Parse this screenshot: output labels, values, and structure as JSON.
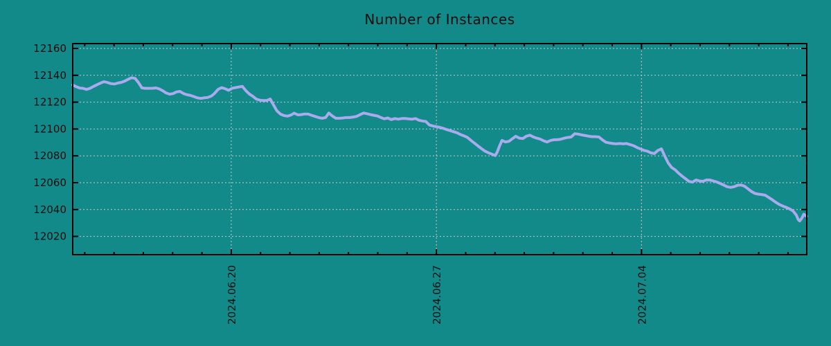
{
  "title": "Number of Instances",
  "colors": {
    "background": "#128A8A",
    "line": "#AAAAEE",
    "grid": "#C9C9C9",
    "axis": "#000000",
    "text": "#0e0e0e"
  },
  "chart_data": {
    "type": "line",
    "title": "Number of Instances",
    "series_name": "instances",
    "xlabel": "",
    "ylabel": "",
    "grid": true,
    "legend": "none",
    "x_unit": "days relative to 2024.06.20",
    "x_range": [
      -5.41,
      19.64
    ],
    "y_range": [
      12006.4,
      12163.6
    ],
    "y_ticks": [
      12020,
      12040,
      12060,
      12080,
      12100,
      12120,
      12140,
      12160
    ],
    "x_major_ticks": [
      {
        "day": 0,
        "label": "2024.06.20"
      },
      {
        "day": 7,
        "label": "2024.06.27"
      },
      {
        "day": 14,
        "label": "2024.07.04"
      }
    ],
    "x_minor_tick_interval_days": 1,
    "points": [
      [
        -5.41,
        12132.8
      ],
      [
        -5.29,
        12131.5
      ],
      [
        -5.17,
        12130.5
      ],
      [
        -5.06,
        12130.3
      ],
      [
        -4.94,
        12129.5
      ],
      [
        -4.82,
        12130.3
      ],
      [
        -4.7,
        12131.7
      ],
      [
        -4.58,
        12133.0
      ],
      [
        -4.46,
        12134.2
      ],
      [
        -4.35,
        12135.2
      ],
      [
        -4.23,
        12134.7
      ],
      [
        -4.11,
        12133.8
      ],
      [
        -3.99,
        12133.5
      ],
      [
        -3.87,
        12134.2
      ],
      [
        -3.76,
        12134.7
      ],
      [
        -3.64,
        12135.6
      ],
      [
        -3.52,
        12137.0
      ],
      [
        -3.4,
        12138.2
      ],
      [
        -3.28,
        12137.7
      ],
      [
        -3.17,
        12134.7
      ],
      [
        -3.05,
        12130.6
      ],
      [
        -2.93,
        12130.3
      ],
      [
        -2.81,
        12130.3
      ],
      [
        -2.69,
        12130.3
      ],
      [
        -2.57,
        12130.6
      ],
      [
        -2.46,
        12129.9
      ],
      [
        -2.34,
        12128.5
      ],
      [
        -2.22,
        12126.8
      ],
      [
        -2.1,
        12125.9
      ],
      [
        -1.98,
        12126.4
      ],
      [
        -1.87,
        12127.6
      ],
      [
        -1.75,
        12128.0
      ],
      [
        -1.63,
        12126.4
      ],
      [
        -1.51,
        12125.5
      ],
      [
        -1.39,
        12125.0
      ],
      [
        -1.27,
        12124.1
      ],
      [
        -1.16,
        12123.2
      ],
      [
        -1.04,
        12122.8
      ],
      [
        -0.92,
        12123.2
      ],
      [
        -0.8,
        12123.5
      ],
      [
        -0.68,
        12124.5
      ],
      [
        -0.57,
        12126.5
      ],
      [
        -0.45,
        12129.5
      ],
      [
        -0.33,
        12130.8
      ],
      [
        -0.21,
        12130.0
      ],
      [
        -0.09,
        12128.8
      ],
      [
        0.03,
        12130.3
      ],
      [
        0.14,
        12130.8
      ],
      [
        0.26,
        12131.3
      ],
      [
        0.38,
        12131.7
      ],
      [
        0.5,
        12128.5
      ],
      [
        0.62,
        12126.0
      ],
      [
        0.73,
        12124.5
      ],
      [
        0.85,
        12122.3
      ],
      [
        0.97,
        12121.5
      ],
      [
        1.09,
        12121.2
      ],
      [
        1.21,
        12121.2
      ],
      [
        1.33,
        12122.3
      ],
      [
        1.44,
        12118.0
      ],
      [
        1.56,
        12113.5
      ],
      [
        1.68,
        12111.1
      ],
      [
        1.8,
        12110.0
      ],
      [
        1.92,
        12109.6
      ],
      [
        2.04,
        12110.4
      ],
      [
        2.15,
        12111.8
      ],
      [
        2.27,
        12110.5
      ],
      [
        2.39,
        12110.7
      ],
      [
        2.51,
        12111.2
      ],
      [
        2.63,
        12111.1
      ],
      [
        2.74,
        12110.2
      ],
      [
        2.86,
        12109.4
      ],
      [
        2.98,
        12108.5
      ],
      [
        3.1,
        12108.0
      ],
      [
        3.22,
        12108.5
      ],
      [
        3.33,
        12111.9
      ],
      [
        3.45,
        12109.7
      ],
      [
        3.57,
        12108.0
      ],
      [
        3.69,
        12108.0
      ],
      [
        3.81,
        12108.2
      ],
      [
        3.92,
        12108.5
      ],
      [
        4.04,
        12108.5
      ],
      [
        4.16,
        12108.9
      ],
      [
        4.28,
        12109.4
      ],
      [
        4.4,
        12110.7
      ],
      [
        4.52,
        12111.9
      ],
      [
        4.63,
        12111.4
      ],
      [
        4.75,
        12110.7
      ],
      [
        4.87,
        12110.2
      ],
      [
        4.99,
        12109.7
      ],
      [
        5.11,
        12108.5
      ],
      [
        5.22,
        12107.6
      ],
      [
        5.34,
        12108.2
      ],
      [
        5.46,
        12107.0
      ],
      [
        5.58,
        12107.8
      ],
      [
        5.7,
        12107.3
      ],
      [
        5.82,
        12107.8
      ],
      [
        5.93,
        12107.8
      ],
      [
        6.05,
        12107.6
      ],
      [
        6.17,
        12107.3
      ],
      [
        6.29,
        12107.8
      ],
      [
        6.41,
        12106.5
      ],
      [
        6.52,
        12106.0
      ],
      [
        6.64,
        12105.6
      ],
      [
        6.76,
        12103.0
      ],
      [
        6.88,
        12102.2
      ],
      [
        7.0,
        12101.7
      ],
      [
        7.11,
        12101.3
      ],
      [
        7.23,
        12100.5
      ],
      [
        7.35,
        12099.6
      ],
      [
        7.47,
        12098.8
      ],
      [
        7.59,
        12098.0
      ],
      [
        7.71,
        12097.1
      ],
      [
        7.82,
        12095.9
      ],
      [
        7.94,
        12094.9
      ],
      [
        8.06,
        12093.7
      ],
      [
        8.18,
        12091.5
      ],
      [
        8.3,
        12089.5
      ],
      [
        8.41,
        12087.5
      ],
      [
        8.53,
        12085.5
      ],
      [
        8.65,
        12083.6
      ],
      [
        8.77,
        12082.3
      ],
      [
        8.89,
        12081.3
      ],
      [
        9.01,
        12080.2
      ],
      [
        9.08,
        12083.0
      ],
      [
        9.15,
        12087.0
      ],
      [
        9.24,
        12091.5
      ],
      [
        9.36,
        12090.3
      ],
      [
        9.48,
        12090.8
      ],
      [
        9.6,
        12092.9
      ],
      [
        9.71,
        12094.6
      ],
      [
        9.83,
        12093.2
      ],
      [
        9.95,
        12092.9
      ],
      [
        10.07,
        12094.6
      ],
      [
        10.19,
        12095.4
      ],
      [
        10.3,
        12094.2
      ],
      [
        10.42,
        12093.2
      ],
      [
        10.54,
        12092.5
      ],
      [
        10.66,
        12091.2
      ],
      [
        10.78,
        12090.3
      ],
      [
        10.9,
        12091.5
      ],
      [
        11.01,
        12092.0
      ],
      [
        11.13,
        12092.0
      ],
      [
        11.25,
        12092.4
      ],
      [
        11.37,
        12093.2
      ],
      [
        11.49,
        12093.7
      ],
      [
        11.6,
        12094.0
      ],
      [
        11.72,
        12096.5
      ],
      [
        11.84,
        12096.2
      ],
      [
        11.96,
        12095.6
      ],
      [
        12.08,
        12095.1
      ],
      [
        12.2,
        12094.6
      ],
      [
        12.31,
        12094.3
      ],
      [
        12.43,
        12094.3
      ],
      [
        12.55,
        12094.0
      ],
      [
        12.67,
        12091.8
      ],
      [
        12.79,
        12090.1
      ],
      [
        12.9,
        12089.6
      ],
      [
        13.02,
        12089.2
      ],
      [
        13.14,
        12088.9
      ],
      [
        13.26,
        12089.2
      ],
      [
        13.38,
        12088.9
      ],
      [
        13.49,
        12089.2
      ],
      [
        13.61,
        12088.4
      ],
      [
        13.73,
        12087.6
      ],
      [
        13.85,
        12086.2
      ],
      [
        13.97,
        12085.1
      ],
      [
        14.09,
        12084.0
      ],
      [
        14.2,
        12083.5
      ],
      [
        14.32,
        12082.2
      ],
      [
        14.44,
        12081.7
      ],
      [
        14.56,
        12084.0
      ],
      [
        14.68,
        12085.2
      ],
      [
        14.79,
        12080.0
      ],
      [
        14.91,
        12074.8
      ],
      [
        15.03,
        12071.3
      ],
      [
        15.15,
        12069.6
      ],
      [
        15.27,
        12067.0
      ],
      [
        15.38,
        12065.0
      ],
      [
        15.5,
        12063.0
      ],
      [
        15.62,
        12061.0
      ],
      [
        15.74,
        12060.4
      ],
      [
        15.86,
        12062.0
      ],
      [
        15.98,
        12061.3
      ],
      [
        16.09,
        12061.0
      ],
      [
        16.21,
        12062.0
      ],
      [
        16.33,
        12062.0
      ],
      [
        16.45,
        12061.3
      ],
      [
        16.57,
        12060.5
      ],
      [
        16.68,
        12059.5
      ],
      [
        16.8,
        12058.3
      ],
      [
        16.92,
        12057.0
      ],
      [
        17.04,
        12056.5
      ],
      [
        17.16,
        12057.0
      ],
      [
        17.27,
        12058.0
      ],
      [
        17.39,
        12058.3
      ],
      [
        17.51,
        12057.5
      ],
      [
        17.63,
        12055.5
      ],
      [
        17.75,
        12053.5
      ],
      [
        17.87,
        12052.0
      ],
      [
        17.98,
        12051.5
      ],
      [
        18.1,
        12051.2
      ],
      [
        18.22,
        12050.7
      ],
      [
        18.34,
        12049.0
      ],
      [
        18.46,
        12047.3
      ],
      [
        18.57,
        12045.6
      ],
      [
        18.69,
        12043.9
      ],
      [
        18.81,
        12042.7
      ],
      [
        18.93,
        12041.7
      ],
      [
        19.05,
        12040.5
      ],
      [
        19.17,
        12039.0
      ],
      [
        19.28,
        12036.0
      ],
      [
        19.35,
        12032.5
      ],
      [
        19.4,
        12031.5
      ],
      [
        19.47,
        12033.5
      ],
      [
        19.54,
        12036.5
      ],
      [
        19.61,
        12035.3
      ],
      [
        19.64,
        12035.0
      ]
    ]
  }
}
